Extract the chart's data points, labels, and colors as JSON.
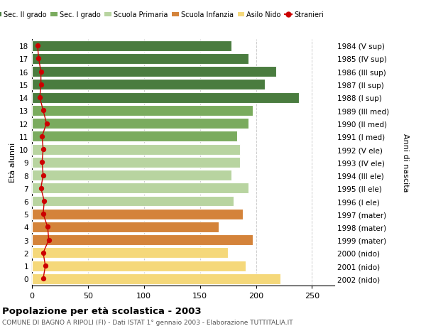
{
  "ages": [
    18,
    17,
    16,
    15,
    14,
    13,
    12,
    11,
    10,
    9,
    8,
    7,
    6,
    5,
    4,
    3,
    2,
    1,
    0
  ],
  "bar_values": [
    178,
    193,
    218,
    208,
    238,
    197,
    193,
    183,
    186,
    186,
    178,
    193,
    180,
    188,
    167,
    197,
    175,
    191,
    222
  ],
  "stranieri_values": [
    5,
    6,
    8,
    8,
    7,
    10,
    13,
    9,
    10,
    9,
    10,
    8,
    11,
    10,
    14,
    15,
    10,
    12,
    10
  ],
  "right_labels": [
    "1984 (V sup)",
    "1985 (IV sup)",
    "1986 (III sup)",
    "1987 (II sup)",
    "1988 (I sup)",
    "1989 (III med)",
    "1990 (II med)",
    "1991 (I med)",
    "1992 (V ele)",
    "1993 (IV ele)",
    "1994 (III ele)",
    "1995 (II ele)",
    "1996 (I ele)",
    "1997 (mater)",
    "1998 (mater)",
    "1999 (mater)",
    "2000 (nido)",
    "2001 (nido)",
    "2002 (nido)"
  ],
  "bar_colors": [
    "#4a7c3f",
    "#4a7c3f",
    "#4a7c3f",
    "#4a7c3f",
    "#4a7c3f",
    "#7aab5e",
    "#7aab5e",
    "#7aab5e",
    "#b8d4a0",
    "#b8d4a0",
    "#b8d4a0",
    "#b8d4a0",
    "#b8d4a0",
    "#d4833a",
    "#d4833a",
    "#d4833a",
    "#f5d87a",
    "#f5d87a",
    "#f5d87a"
  ],
  "legend_labels": [
    "Sec. II grado",
    "Sec. I grado",
    "Scuola Primaria",
    "Scuola Infanzia",
    "Asilo Nido",
    "Stranieri"
  ],
  "legend_colors": [
    "#4a7c3f",
    "#7aab5e",
    "#b8d4a0",
    "#d4833a",
    "#f5d87a",
    "#cc0000"
  ],
  "title": "Popolazione per età scolastica - 2003",
  "subtitle": "COMUNE DI BAGNO A RIPOLI (FI) - Dati ISTAT 1° gennaio 2003 - Elaborazione TUTTITALIA.IT",
  "ylabel": "Età alunni",
  "right_ylabel": "Anni di nascita",
  "xlim": [
    0,
    270
  ],
  "xticks": [
    0,
    50,
    100,
    150,
    200,
    250
  ],
  "bg_color": "#ffffff",
  "grid_color": "#cccccc"
}
